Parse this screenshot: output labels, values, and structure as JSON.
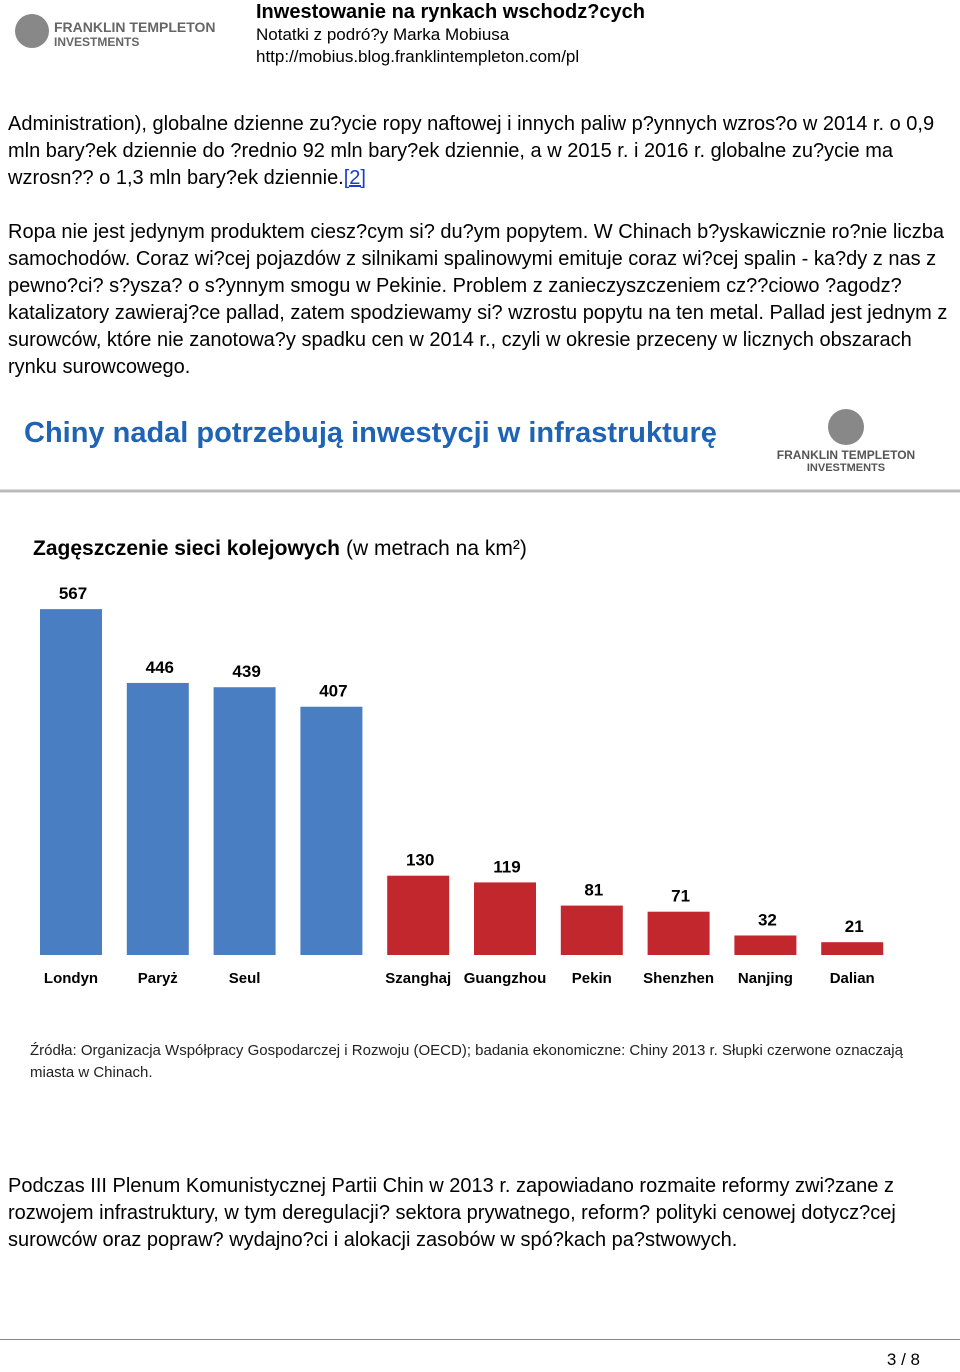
{
  "header": {
    "logo": [
      "FRANKLIN TEMPLETON",
      "INVESTMENTS"
    ],
    "title": "Inwestowanie na rynkach wschodz?cych",
    "subtitle": "Notatki z podró?y Marka Mobiusa",
    "url": "http://mobius.blog.franklintempleton.com/pl"
  },
  "paragraphs": [
    {
      "text": "Administration), globalne dzienne zu?ycie ropy naftowej i innych paliw p?ynnych wzros?o w 2014 r. o 0,9 mln bary?ek dziennie do ?rednio 92 mln bary?ek dziennie, a w 2015 r. i 2016 r. globalne zu?ycie ma wzrosn?? o 1,3 mln bary?ek dziennie.",
      "link": "[2]"
    },
    {
      "text": "Ropa nie jest jedynym produktem ciesz?cym si? du?ym popytem. W Chinach b?yskawicznie ro?nie liczba samochodów. Coraz wi?cej pojazdów z silnikami spalinowymi emituje coraz wi?cej spalin - ka?dy z nas z pewno?ci? s?ysza? o s?ynnym smogu w Pekinie. Problem z zanieczyszczeniem cz??ciowo ?agodz? katalizatory zawieraj?ce pallad, zatem spodziewamy si? wzrostu popytu na ten metal. Pallad jest jednym z surowców, które nie zanotowa?y spadku cen w 2014 r., czyli w okresie przeceny w licznych obszarach rynku surowcowego."
    },
    {
      "text": "Podczas III Plenum Komunistycznej Partii Chin w 2013 r. zapowiadano rozmaite reformy zwi?zane z rozwojem infrastruktury, w tym deregulacji? sektora prywatnego, reform? polityki cenowej dotycz?cej surowców oraz popraw? wydajno?ci i alokacji zasobów w spó?kach pa?stwowych."
    }
  ],
  "chart_data": {
    "type": "bar",
    "title": "Chiny nadal potrzebują inwestycji w infrastrukturę",
    "logo": [
      "FRANKLIN TEMPLETON",
      "INVESTMENTS"
    ],
    "subtitle": "Zagęszczenie sieci kolejowych",
    "subtitle_unit": "(w metrach na km²)",
    "categories": [
      "Londyn",
      "Paryż",
      "Seul",
      null,
      "Szanghaj",
      "Guangzhou",
      "Pekin",
      "Shenzhen",
      "Nanjing",
      "Dalian"
    ],
    "values": [
      567,
      446,
      439,
      407,
      130,
      119,
      81,
      71,
      32,
      21
    ],
    "colors": [
      "#4a7ec2",
      "#4a7ec2",
      "#4a7ec2",
      "#4a7ec2",
      "#c3272e",
      "#c3272e",
      "#c3272e",
      "#c3272e",
      "#c3272e",
      "#c3272e"
    ],
    "source": "Źródła: Organizacja Współpracy Gospodarczej i Rozwoju (OECD); badania ekonomiczne: Chiny 2013 r. Słupki czerwone oznaczają miasta w Chinach."
  },
  "footer": {
    "page": "3 / 8"
  }
}
